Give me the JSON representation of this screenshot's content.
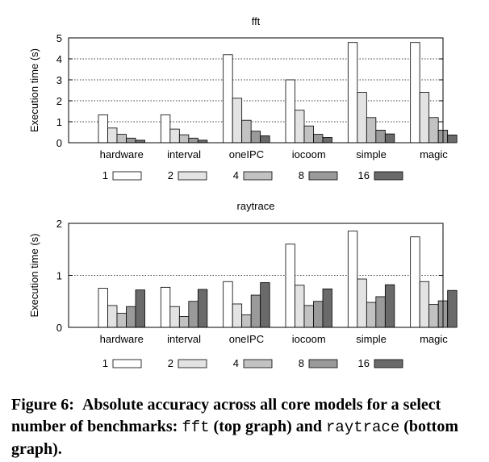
{
  "chart_data": [
    {
      "type": "bar",
      "title": "fft",
      "xlabel": "",
      "ylabel": "Execution time (s)",
      "ylim": [
        0,
        5
      ],
      "yticks": [
        "0",
        "1",
        "2",
        "3",
        "4",
        "5"
      ],
      "grid": "horizontal dotted",
      "legend_position": "bottom",
      "categories": [
        "hardware",
        "interval",
        "oneIPC",
        "iocoom",
        "simple",
        "magic"
      ],
      "series": [
        {
          "name": "1",
          "color": "#ffffff",
          "values": [
            1.33,
            1.33,
            4.2,
            3.0,
            4.78,
            4.78
          ]
        },
        {
          "name": "2",
          "color": "#e3e3e3",
          "values": [
            0.7,
            0.65,
            2.12,
            1.55,
            2.4,
            2.4
          ]
        },
        {
          "name": "4",
          "color": "#c2c2c2",
          "values": [
            0.4,
            0.38,
            1.07,
            0.8,
            1.2,
            1.2
          ]
        },
        {
          "name": "8",
          "color": "#9a9a9a",
          "values": [
            0.22,
            0.22,
            0.55,
            0.4,
            0.6,
            0.6
          ]
        },
        {
          "name": "16",
          "color": "#6a6a6a",
          "values": [
            0.12,
            0.12,
            0.33,
            0.25,
            0.42,
            0.37
          ]
        }
      ]
    },
    {
      "type": "bar",
      "title": "raytrace",
      "xlabel": "",
      "ylabel": "Execution time (s)",
      "ylim": [
        0,
        2
      ],
      "yticks": [
        "0",
        "1",
        "2"
      ],
      "grid": "horizontal dotted",
      "legend_position": "bottom",
      "categories": [
        "hardware",
        "interval",
        "oneIPC",
        "iocoom",
        "simple",
        "magic"
      ],
      "series": [
        {
          "name": "1",
          "color": "#ffffff",
          "values": [
            0.75,
            0.77,
            0.88,
            1.6,
            1.85,
            1.74
          ]
        },
        {
          "name": "2",
          "color": "#e3e3e3",
          "values": [
            0.42,
            0.4,
            0.45,
            0.81,
            0.93,
            0.88
          ]
        },
        {
          "name": "4",
          "color": "#c2c2c2",
          "values": [
            0.27,
            0.21,
            0.24,
            0.42,
            0.48,
            0.44
          ]
        },
        {
          "name": "8",
          "color": "#9a9a9a",
          "values": [
            0.4,
            0.5,
            0.62,
            0.5,
            0.59,
            0.51
          ]
        },
        {
          "name": "16",
          "color": "#6a6a6a",
          "values": [
            0.72,
            0.73,
            0.86,
            0.74,
            0.82,
            0.71
          ]
        }
      ]
    }
  ],
  "caption": {
    "label": "Figure 6:",
    "text_part1": "Absolute accuracy across all core models for a select number of benchmarks: ",
    "bench1": "fft",
    "text_part2": " (top graph) and ",
    "bench2": "raytrace",
    "text_part3": " (bottom graph)."
  }
}
